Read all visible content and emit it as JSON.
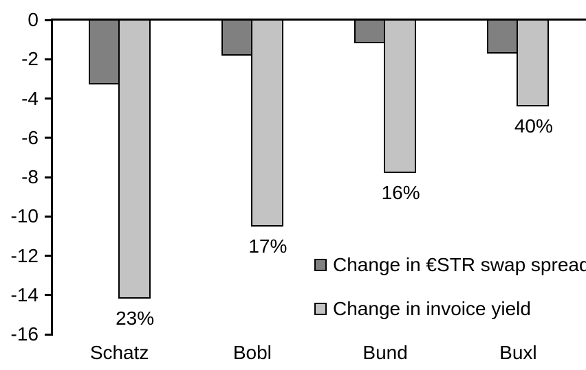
{
  "chart_data": {
    "type": "bar",
    "orientation": "vertical-negative",
    "title": "",
    "xlabel": "",
    "ylabel": "",
    "categories": [
      "Schatz",
      "Bobl",
      "Bund",
      "Buxl"
    ],
    "series": [
      {
        "name": "Change in €STR swap spread",
        "color": "#808080",
        "values": [
          -3.3,
          -1.8,
          -1.2,
          -1.7
        ]
      },
      {
        "name": "Change in invoice yield",
        "color": "#C3C3C3",
        "values": [
          -14.2,
          -10.5,
          -7.8,
          -4.4
        ]
      }
    ],
    "bar_labels": [
      "23%",
      "17%",
      "16%",
      "40%"
    ],
    "bar_labels_series": "Change in invoice yield",
    "ylim": [
      -16,
      0
    ],
    "yticks": [
      0,
      -2,
      -4,
      -6,
      -8,
      -10,
      -12,
      -14,
      -16
    ],
    "ytick_labels": [
      "0",
      "-2",
      "-4",
      "-6",
      "-8",
      "-10",
      "-12",
      "-14",
      "-16"
    ],
    "grid": false,
    "legend_position": "inside-center-right",
    "axis_color": "#000000",
    "bar_border_color": "#000000",
    "background_color": "#FFFFFF"
  }
}
